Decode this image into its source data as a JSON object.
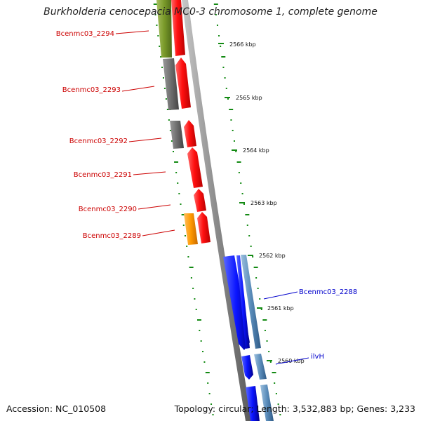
{
  "title": "Burkholderia cenocepacia MC0-3 chromosome 1, complete genome",
  "footer": {
    "accession": "Accession: NC_010508",
    "summary": "Topology: circular; Length: 3,532,883 bp; Genes: 3,233"
  },
  "colors": {
    "forward_gene": "#ff0000",
    "reverse_gene": "#0000ff",
    "forward_label": "#cc0000",
    "reverse_label": "#0000cc",
    "tick": "#138a13",
    "backbone": "#888888"
  },
  "scale_ticks": [
    "2566 kbp",
    "2565 kbp",
    "2564 kbp",
    "2563 kbp",
    "2562 kbp",
    "2561 kbp",
    "2560 kbp"
  ],
  "forward_genes": [
    "Bcenmc03_2294",
    "Bcenmc03_2293",
    "Bcenmc03_2292",
    "Bcenmc03_2291",
    "Bcenmc03_2290",
    "Bcenmc03_2289"
  ],
  "reverse_genes": [
    "Bcenmc03_2288",
    "ilvH"
  ]
}
